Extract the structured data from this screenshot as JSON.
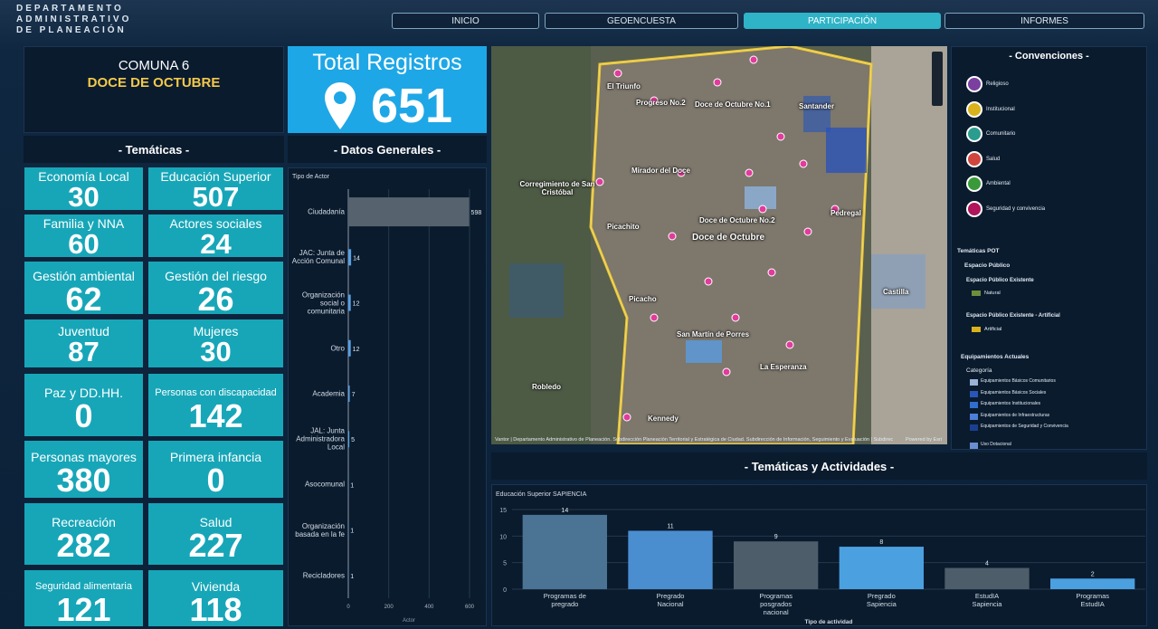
{
  "header": {
    "logo": [
      "DEPARTAMENTO",
      "ADMINISTRATIVO",
      "DE PLANEACIÓN"
    ]
  },
  "nav": [
    {
      "label": "INICIO",
      "active": false
    },
    {
      "label": "GEOENCUESTA",
      "active": false
    },
    {
      "label": "PARTICIPACIÓN",
      "active": true
    },
    {
      "label": "INFORMES",
      "active": false
    }
  ],
  "comuna": {
    "title": "COMUNA 6",
    "name": "DOCE DE OCTUBRE"
  },
  "total": {
    "label": "Total Registros",
    "value": 651
  },
  "tematicas": {
    "title": "- Temáticas -",
    "items": [
      {
        "label": "Economía Local",
        "value": 30
      },
      {
        "label": "Educación Superior",
        "value": 507
      },
      {
        "label": "Familia y NNA",
        "value": 60
      },
      {
        "label": "Actores sociales",
        "value": 24
      },
      {
        "label": "Gestión ambiental",
        "value": 62
      },
      {
        "label": "Gestión del riesgo",
        "value": 26
      },
      {
        "label": "Juventud",
        "value": 87
      },
      {
        "label": "Mujeres",
        "value": 30
      },
      {
        "label": "Paz y DD.HH.",
        "value": 0
      },
      {
        "label": "Personas con discapacidad",
        "value": 142
      },
      {
        "label": "Personas mayores",
        "value": 380
      },
      {
        "label": "Primera infancia",
        "value": 0
      },
      {
        "label": "Recreación",
        "value": 282
      },
      {
        "label": "Salud",
        "value": 227
      },
      {
        "label": "Seguridad alimentaria",
        "value": 121
      },
      {
        "label": "Vivienda",
        "value": 118
      }
    ]
  },
  "datos_generales_title": "- Datos Generales -",
  "actividades_title": "- Temáticas y Actividades -",
  "map": {
    "labels": [
      "El Triunfo",
      "Progreso No.2",
      "Doce de Octubre No.1",
      "Santander",
      "Corregimiento de San Cristóbal",
      "Mirador del Doce",
      "Doce de Octubre No.2",
      "Doce de Octubre",
      "Pedregal",
      "Picachito",
      "Picacho",
      "Castilla",
      "San Martín de Porres",
      "La Esperanza",
      "Robledo",
      "Kennedy"
    ],
    "attribution": "Vantor | Departamento Administrativo de Planeación. Subdirección Planeación Territorial y Estratégica de Ciudad. Subdirección de Información, Seguimiento y Evaluación | Subdirección de Pl...",
    "powered": "Powered by Esri"
  },
  "convenciones": {
    "title": "- Convenciones -",
    "icons": [
      {
        "label": "Religioso",
        "color": "#7b3fa0"
      },
      {
        "label": "Institucional",
        "color": "#d9b21c"
      },
      {
        "label": "Comunitario",
        "color": "#2a9d8f"
      },
      {
        "label": "Salud",
        "color": "#d0463c"
      },
      {
        "label": "Ambiental",
        "color": "#3a9a3a"
      },
      {
        "label": "Seguridad y convivencia",
        "color": "#b0145a"
      }
    ],
    "pot_title": "Temáticas POT",
    "espacio": "Espacio Público",
    "existente": "Espacio Público Existente",
    "natural": {
      "label": "Natural",
      "color": "#6f8f3a"
    },
    "artificial_title": "Espacio Público Existente - Artificial",
    "artificial": {
      "label": "Artificial",
      "color": "#d9b21c"
    },
    "equip_title": "Equipamientos Actuales",
    "categoria": "Categoría",
    "equip": [
      {
        "label": "Equipamientos Básicos Comunitarios",
        "color": "#9ab3d6"
      },
      {
        "label": "Equipamientos Básicos Sociales",
        "color": "#2a55b8"
      },
      {
        "label": "Equipamientos Institucionales",
        "color": "#2f6fcf"
      },
      {
        "label": "Equipamientos de Infraestructuras",
        "color": "#4d7fd8"
      },
      {
        "label": "Equipamientos de Seguridad y Convivencia",
        "color": "#1b3f8f"
      },
      {
        "label": "Uso Dotacional",
        "color": "#6a8fd0"
      }
    ]
  },
  "chart_data": [
    {
      "type": "hbar",
      "title": "Tipo de Actor",
      "x_label": "Actor",
      "categories": [
        "Ciudadanía",
        "JAC: Junta de Acción Comunal",
        "Organización social o comunitaria",
        "Otro",
        "Academia",
        "JAL: Junta Administradora Local",
        "Asocomunal",
        "Organización basada en la fe",
        "Recicladores"
      ],
      "values": [
        598,
        14,
        12,
        12,
        7,
        5,
        1,
        1,
        1
      ],
      "colors": [
        "#56636e",
        "#5aa0e0",
        "#5aa0e0",
        "#5aa0e0",
        "#5aa0e0",
        "#5aa0e0",
        "#5aa0e0",
        "#5aa0e0",
        "#5aa0e0"
      ],
      "xlim": [
        0,
        600
      ],
      "xticks": [
        0,
        200,
        400,
        600
      ],
      "grid": true
    },
    {
      "type": "bar",
      "title": "Educación Superior SAPIENCIA",
      "x_label": "Tipo de actividad",
      "categories": [
        "Programas de pregrado",
        "Pregrado Nacional",
        "Programas posgrados nacional",
        "Pregrado Sapiencia",
        "EstudIA Sapiencia",
        "Programas EstudIA"
      ],
      "values": [
        14,
        11,
        9,
        8,
        4,
        2
      ],
      "colors": [
        "#4a7394",
        "#4a8ed0",
        "#4e5d6a",
        "#4ba0e0",
        "#4e5d6a",
        "#4ba0e0"
      ],
      "ylim": [
        0,
        15
      ],
      "yticks": [
        0,
        5,
        10,
        15
      ],
      "grid": true
    }
  ]
}
